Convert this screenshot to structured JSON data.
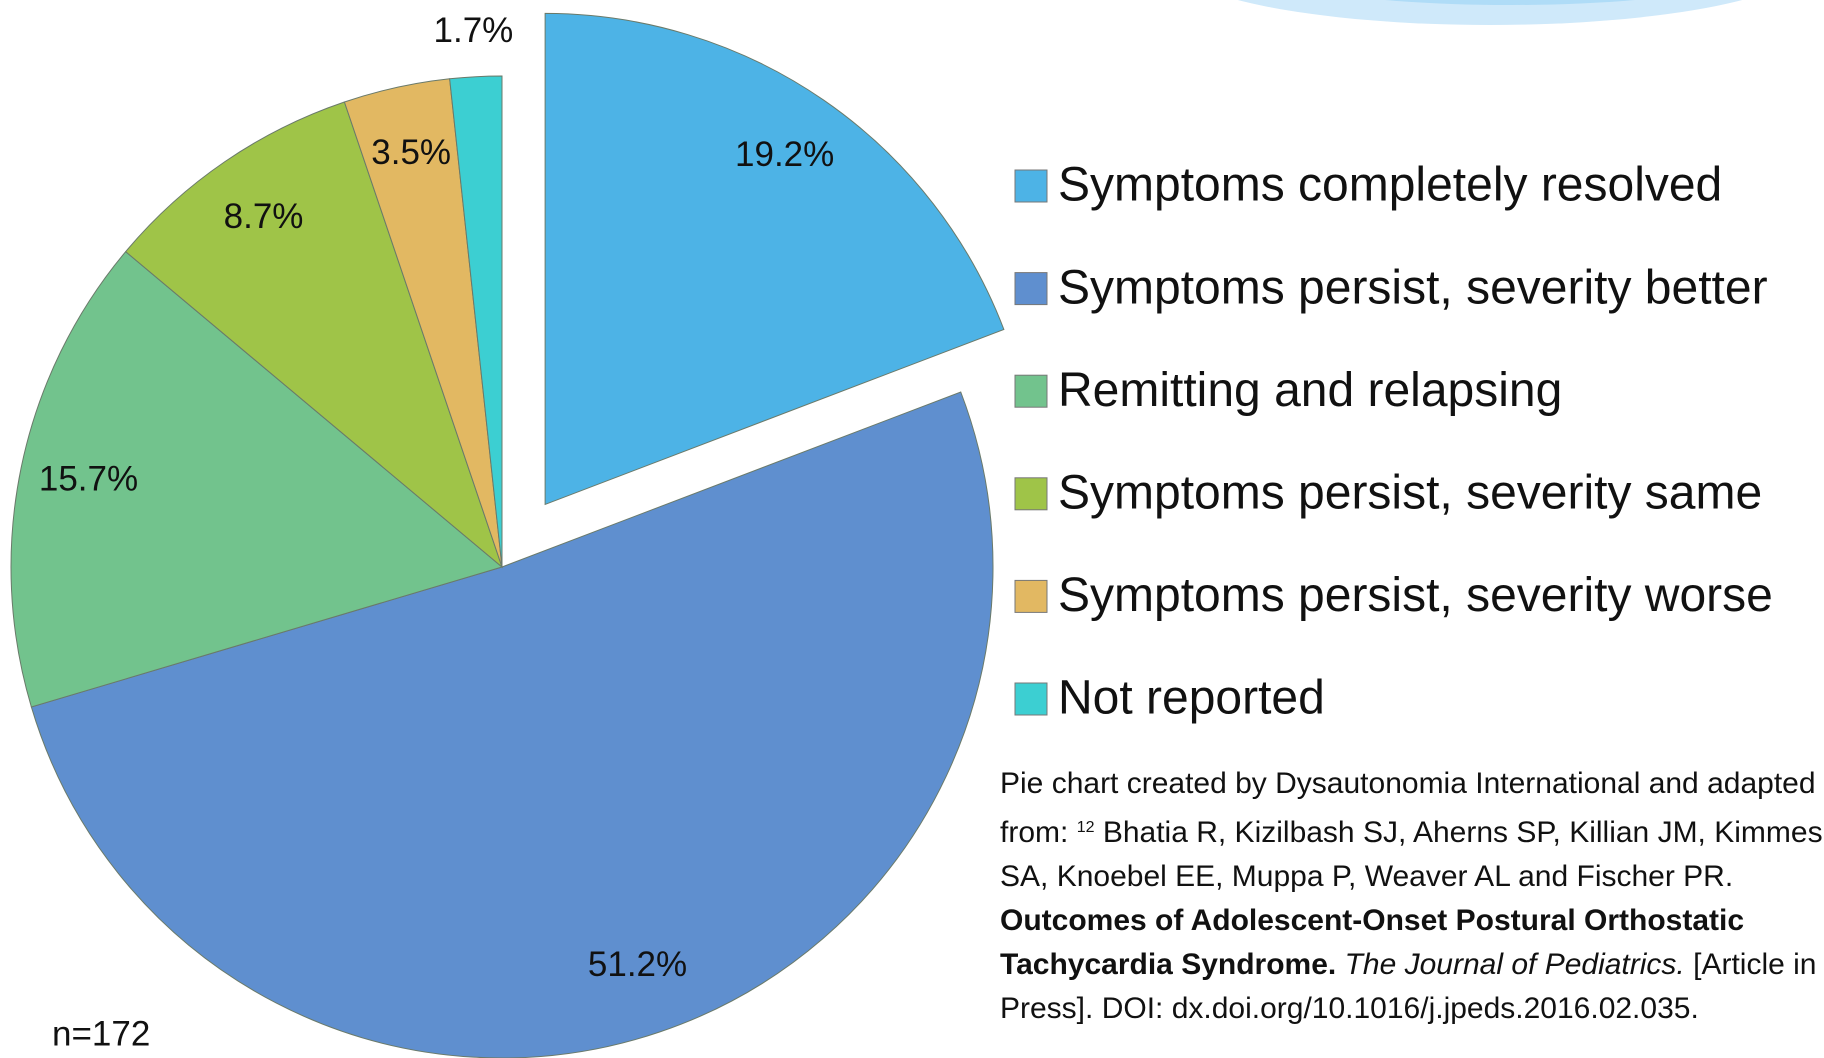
{
  "chart_data": {
    "type": "pie",
    "categories": [
      "Symptoms completely resolved",
      "Symptoms persist, severity better",
      "Remitting and relapsing",
      "Symptoms persist, severity same",
      "Symptoms persist, severity worse",
      "Not reported"
    ],
    "values": [
      19.2,
      51.2,
      15.7,
      8.7,
      3.5,
      1.7
    ],
    "value_labels": [
      "19.2%",
      "51.2%",
      "15.7%",
      "8.7%",
      "3.5%",
      "1.7%"
    ],
    "colors": [
      "#4db3e6",
      "#5f8fcf",
      "#72c38d",
      "#9fc448",
      "#e2b862",
      "#3ccfd2"
    ],
    "annotation": "n=172",
    "citation": {
      "prefix": "Pie chart created by Dysautonomia International and adapted from:",
      "ref_number": "12",
      "authors": "Bhatia R, Kizilbash SJ, Aherns SP, Killian JM, Kimmes SA, Knoebel EE, Muppa P, Weaver AL and Fischer PR.",
      "title": "Outcomes of Adolescent-Onset Postural Orthostatic Tachycardia Syndrome.",
      "journal": "The Journal of Pediatrics.",
      "status": "[Article in Press]. DOI:",
      "doi": "dx.doi.org/10.1016/j.jpeds.2016.02.035."
    }
  }
}
